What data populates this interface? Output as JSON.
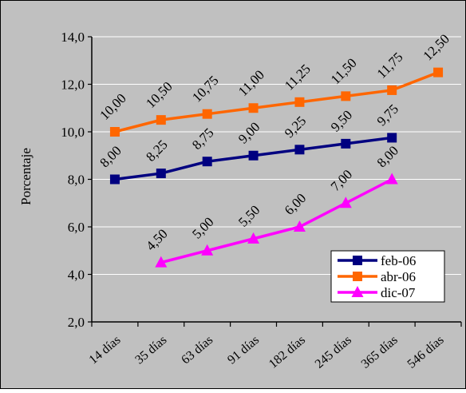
{
  "chart_data": {
    "type": "line",
    "title": "",
    "xlabel": "",
    "ylabel": "Porcentaje",
    "categories": [
      "14 días",
      "35 días",
      "63 días",
      "91 días",
      "182 días",
      "245 días",
      "365 días",
      "546 días"
    ],
    "ylim": [
      2,
      14
    ],
    "yticks": [
      "2,0",
      "4,0",
      "6,0",
      "8,0",
      "10,0",
      "12,0",
      "14,0"
    ],
    "grid": true,
    "legend_position": "bottom-right",
    "series": [
      {
        "name": "feb-06",
        "color": "#000080",
        "marker": "square",
        "values": [
          8.0,
          8.25,
          8.75,
          9.0,
          9.25,
          9.5,
          9.75,
          null
        ],
        "labels": [
          "8,00",
          "8,25",
          "8,75",
          "9,00",
          "9,25",
          "9,50",
          "9,75",
          null
        ]
      },
      {
        "name": "abr-06",
        "color": "#FF6600",
        "marker": "square",
        "values": [
          10.0,
          10.5,
          10.75,
          11.0,
          11.25,
          11.5,
          11.75,
          12.5
        ],
        "labels": [
          "10,00",
          "10,50",
          "10,75",
          "11,00",
          "11,25",
          "11,50",
          "11,75",
          "12,50"
        ]
      },
      {
        "name": "dic-07",
        "color": "#FF00FF",
        "marker": "triangle",
        "values": [
          null,
          4.5,
          5.0,
          5.5,
          6.0,
          7.0,
          8.0,
          null
        ],
        "labels": [
          null,
          "4,50",
          "5,00",
          "5,50",
          "6,00",
          "7,00",
          "8,00",
          null
        ]
      }
    ],
    "background_color": "#C0C0C0",
    "plot_background_color": "#C0C0C0",
    "grid_color": "#FFFFFF"
  }
}
